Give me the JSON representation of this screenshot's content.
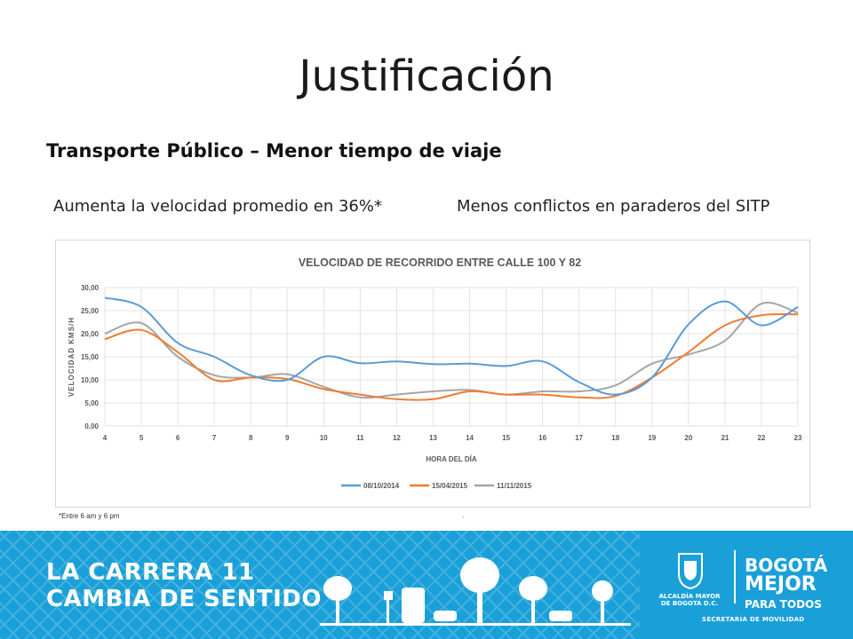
{
  "slide": {
    "title": "Justificación",
    "subtitle": "Transporte Público – Menor tiempo de viaje",
    "point_left": "Aumenta la velocidad promedio en 36%*",
    "point_right": "Menos conflictos en paraderos del SITP",
    "footnote": "*Entre 6 am y 6 pm",
    "footnote_mark": "."
  },
  "banner": {
    "line1": "LA CARRERA 11",
    "line2": "CAMBIA DE SENTIDO",
    "alcaldia_line1": "ALCALDÍA MAYOR",
    "alcaldia_line2": "DE BOGOTÁ D.C.",
    "bogota_line1": "BOGOTÁ",
    "bogota_line2": "MEJOR",
    "bogota_line3": "PARA TODOS",
    "secretaria": "SECRETARÍA DE MOVILIDAD",
    "background_color": "#1aa0d8"
  },
  "chart_data": {
    "type": "line",
    "title": "VELOCIDAD DE RECORRIDO ENTRE CALLE 100 Y 82",
    "xlabel": "HORA DEL DÍA",
    "ylabel": "VELOCIDAD KMS/H",
    "x": [
      4,
      5,
      6,
      7,
      8,
      9,
      10,
      11,
      12,
      13,
      14,
      15,
      16,
      17,
      18,
      19,
      20,
      21,
      22,
      23
    ],
    "x_tick_labels": [
      "4",
      "5",
      "6",
      "7",
      "8",
      "9",
      "10",
      "11",
      "12",
      "13",
      "14",
      "15",
      "16",
      "17",
      "18",
      "19",
      "20",
      "21",
      "22",
      "23"
    ],
    "y_tick_labels": [
      "0,00",
      "5,00",
      "10,00",
      "15,00",
      "20,00",
      "25,00",
      "30,00"
    ],
    "y_ticks": [
      0,
      5,
      10,
      15,
      20,
      25,
      30
    ],
    "ylim": [
      0,
      30
    ],
    "xlim": [
      4,
      23
    ],
    "grid": true,
    "legend_position": "bottom",
    "series": [
      {
        "name": "08/10/2014",
        "color": "#5b9bd5",
        "values": [
          27.8,
          25.8,
          18.0,
          15.0,
          11.0,
          10.0,
          15.0,
          13.6,
          14.0,
          13.4,
          13.5,
          13.0,
          14.0,
          9.5,
          6.8,
          10.5,
          22.0,
          27.0,
          21.8,
          25.8
        ]
      },
      {
        "name": "15/04/2015",
        "color": "#ed7d31",
        "values": [
          18.8,
          20.8,
          16.0,
          10.0,
          10.5,
          10.2,
          8.0,
          6.8,
          5.8,
          5.8,
          7.5,
          6.8,
          6.8,
          6.2,
          6.5,
          10.5,
          16.0,
          21.8,
          24.0,
          24.2
        ]
      },
      {
        "name": "11/11/2015",
        "color": "#a5a5a5",
        "values": [
          20.0,
          22.3,
          15.0,
          11.0,
          10.5,
          11.2,
          8.5,
          6.2,
          6.8,
          7.5,
          7.8,
          6.8,
          7.5,
          7.5,
          8.8,
          13.5,
          15.5,
          18.5,
          26.5,
          24.5
        ]
      }
    ]
  }
}
